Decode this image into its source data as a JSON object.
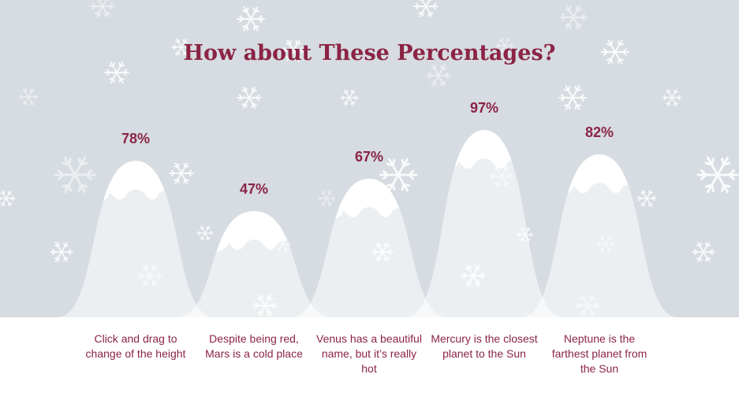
{
  "title": "How about These Percentages?",
  "colors": {
    "accent": "#8b2445",
    "sky": "#d6dce1",
    "snow": "#ffffff"
  },
  "decorative_icon": "snowflake-icon",
  "items": [
    {
      "percent": 78,
      "percent_label": "78%",
      "text": "Click and drag to change of the height"
    },
    {
      "percent": 47,
      "percent_label": "47%",
      "text": "Despite being red, Mars is a cold place"
    },
    {
      "percent": 67,
      "percent_label": "67%",
      "text": "Venus has a beautiful name, but it’s really hot"
    },
    {
      "percent": 97,
      "percent_label": "97%",
      "text": "Mercury is the closest planet to the Sun"
    },
    {
      "percent": 82,
      "percent_label": "82%",
      "text": "Neptune is the farthest planet from the Sun"
    }
  ]
}
